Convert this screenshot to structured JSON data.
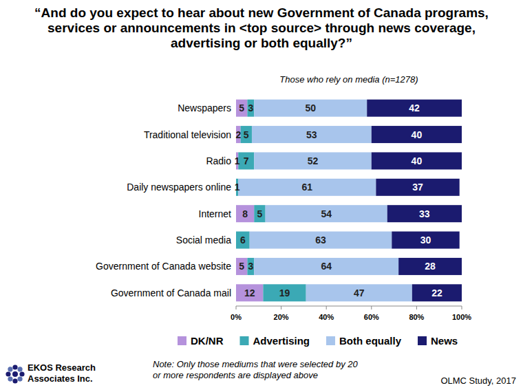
{
  "chart_data": {
    "type": "bar",
    "orientation": "horizontal",
    "stacked": true,
    "data_labels": true,
    "legend": "bottom",
    "title": "“And do you expect to hear about new Government of Canada programs, services or announcements in <top source> through news coverage, advertising or both equally?”",
    "subtitle": "Those who rely on media (n=1278)",
    "note": "Note: Only those mediums that were selected by 20 or more respondents are displayed above",
    "source": "EKOS Research Associates Inc.",
    "footer": "OLMC Study, 2017",
    "categories": [
      "Newspapers",
      "Traditional television",
      "Radio",
      "Daily newspapers online",
      "Internet",
      "Social media",
      "Government of Canada website",
      "Government of Canada mail"
    ],
    "series": [
      {
        "name": "DK/NR",
        "color": "#b592dc",
        "values": [
          5,
          2,
          1,
          null,
          8,
          null,
          5,
          12
        ]
      },
      {
        "name": "Advertising",
        "color": "#3ba9b5",
        "values": [
          3,
          5,
          7,
          1,
          5,
          6,
          3,
          19
        ]
      },
      {
        "name": "Both equally",
        "color": "#a8c5ec",
        "values": [
          50,
          53,
          52,
          61,
          54,
          63,
          64,
          47
        ]
      },
      {
        "name": "News",
        "color": "#1b1b6f",
        "values": [
          42,
          40,
          40,
          37,
          33,
          30,
          28,
          22
        ]
      }
    ],
    "xlim": [
      0,
      100
    ],
    "xticks": [
      {
        "value": 0,
        "label": "0%"
      },
      {
        "value": 20,
        "label": "20%"
      },
      {
        "value": 40,
        "label": "40%"
      },
      {
        "value": 60,
        "label": "60%"
      },
      {
        "value": 80,
        "label": "80%"
      },
      {
        "value": 100,
        "label": "100%"
      }
    ]
  }
}
